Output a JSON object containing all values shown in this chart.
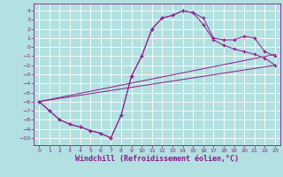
{
  "background_color": "#b3e0e0",
  "grid_color": "#ffffff",
  "line_color": "#8b1a8b",
  "xlabel": "Windchill (Refroidissement éolien,°C)",
  "xlabel_fontsize": 6.0,
  "xlim": [
    -0.5,
    23.5
  ],
  "ylim": [
    -10.8,
    4.8
  ],
  "xticks": [
    0,
    1,
    2,
    3,
    4,
    5,
    6,
    7,
    8,
    9,
    10,
    11,
    12,
    13,
    14,
    15,
    16,
    17,
    18,
    19,
    20,
    21,
    22,
    23
  ],
  "yticks": [
    4,
    3,
    2,
    1,
    0,
    -1,
    -2,
    -3,
    -4,
    -5,
    -6,
    -7,
    -8,
    -9,
    -10
  ],
  "curve1_x": [
    0,
    1,
    2,
    3,
    4,
    5,
    6,
    7,
    8,
    9,
    10,
    11,
    12,
    13,
    14,
    15,
    16,
    17,
    18,
    19,
    20,
    21,
    22,
    23
  ],
  "curve1_y": [
    -6.0,
    -7.0,
    -8.0,
    -8.5,
    -8.8,
    -9.2,
    -9.5,
    -10.0,
    -7.5,
    -3.2,
    -1.0,
    2.0,
    3.2,
    3.5,
    4.0,
    3.8,
    3.2,
    1.0,
    0.8,
    0.8,
    1.2,
    1.0,
    -0.5,
    -1.0
  ],
  "curve2_x": [
    0,
    1,
    2,
    3,
    4,
    5,
    6,
    7,
    8,
    9,
    10,
    11,
    12,
    13,
    14,
    15,
    16,
    17,
    18,
    19,
    20,
    21,
    22,
    23
  ],
  "curve2_y": [
    -6.0,
    -7.0,
    -8.0,
    -8.5,
    -8.8,
    -9.2,
    -9.5,
    -10.0,
    -7.5,
    -3.2,
    -1.0,
    2.0,
    3.2,
    3.5,
    4.0,
    3.8,
    2.5,
    0.8,
    0.2,
    -0.2,
    -0.5,
    -0.8,
    -1.2,
    -2.0
  ],
  "line1_x": [
    0,
    23
  ],
  "line1_y": [
    -6.0,
    -0.8
  ],
  "line2_x": [
    0,
    23
  ],
  "line2_y": [
    -6.0,
    -2.0
  ]
}
